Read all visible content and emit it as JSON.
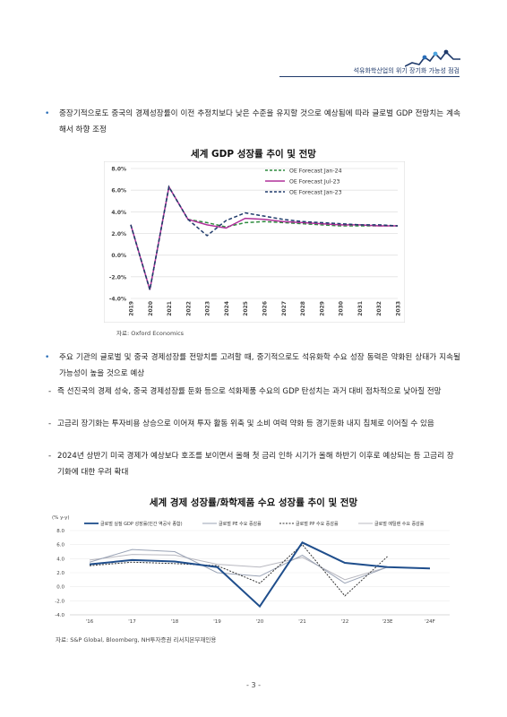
{
  "header": {
    "title": "석유화학산업의 위기 장기화 가능성 점검"
  },
  "bullets": {
    "b1": "중장기적으로도 중국의 경제성장률이 이전 추정치보다 낮은 수준을 유지할 것으로 예상됨에 따라 글로벌 GDP 전망치는 계속해서 하향 조정",
    "b2": "주요 기관의 글로벌 및 중국 경제성장률 전망치를 고려할 때, 중기적으로도 석유화학 수요 성장 동력은 약화된 상태가 지속될 가능성이 높을 것으로 예상",
    "d1": "즉 선진국의 경제 성숙, 중국 경제성장률 둔화 등으로 석화제품 수요의 GDP 탄성치는 과거 대비 점차적으로 낮아질 전망",
    "d2": "고금리 장기화는 투자비용 상승으로 이어져 투자 활동 위축 및 소비 여력 약화 등 경기둔화 내지 침체로 이어질 수 있음",
    "d3": "2024년 상반기 미국 경제가 예상보다 호조를 보이면서 올해 첫 금리 인하 시기가 올해 하반기 이후로 예상되는 등 고금리 장기화에 대한 우려 확대",
    "dash": "-"
  },
  "chart1": {
    "source": "자료: Oxford Economics",
    "yticks": [
      "8.0%",
      "6.0%",
      "4.0%",
      "2.0%",
      "0.0%",
      "-2.0%",
      "-4.0%"
    ],
    "xticks": [
      "2019",
      "2020",
      "2021",
      "2022",
      "2023",
      "2024",
      "2025",
      "2026",
      "2027",
      "2028",
      "2029",
      "2030",
      "2031",
      "2032",
      "2033"
    ]
  },
  "chart2": {
    "source": "자료: S&P Global, Bloomberg, NH투자증권 리서치본부재인용",
    "yunit": "(% y-y)",
    "yticks": [
      "8.0",
      "6.0",
      "4.0",
      "2.0",
      "0.0",
      "-2.0",
      "-4.0"
    ],
    "xticks": [
      "'16",
      "'17",
      "'18",
      "'19",
      "'20",
      "'21",
      "'22",
      "'23E",
      "'24F"
    ]
  },
  "chart_data": [
    {
      "type": "line",
      "title": "세계 GDP 성장률 추이 및 전망",
      "x": [
        2019,
        2020,
        2021,
        2022,
        2023,
        2024,
        2025,
        2026,
        2027,
        2028,
        2029,
        2030,
        2031,
        2032,
        2033
      ],
      "ylim": [
        -4,
        8
      ],
      "grid": true,
      "legend": "top-right",
      "series": [
        {
          "name": "OE Forecast Jan-24",
          "color": "#2e8b3e",
          "style": "dashed",
          "values": [
            2.8,
            -3.2,
            6.3,
            3.3,
            3.0,
            2.6,
            3.0,
            3.1,
            3.0,
            2.9,
            2.8,
            2.7,
            2.7,
            2.7,
            2.7
          ]
        },
        {
          "name": "OE Forecast Jul-23",
          "color": "#b0309a",
          "style": "solid",
          "values": [
            2.8,
            -3.2,
            6.3,
            3.3,
            2.8,
            2.5,
            3.4,
            3.3,
            3.1,
            3.0,
            2.9,
            2.8,
            2.8,
            2.7,
            2.7
          ]
        },
        {
          "name": "OE Forecast Jan-23",
          "color": "#1f3a6b",
          "style": "dashed",
          "values": [
            2.8,
            -3.2,
            6.3,
            3.3,
            1.8,
            3.2,
            3.9,
            3.6,
            3.3,
            3.1,
            3.0,
            2.9,
            2.8,
            2.8,
            2.7
          ]
        }
      ]
    },
    {
      "type": "line",
      "title": "세계 경제 성장률/화학제품 수요 성장률 추이 및 전망",
      "x": [
        "'16",
        "'17",
        "'18",
        "'19",
        "'20",
        "'21",
        "'22",
        "'23E",
        "'24F"
      ],
      "ylim": [
        -4,
        8
      ],
      "grid": true,
      "legend": "top",
      "series": [
        {
          "name": "글로벌 실질 GDP 성장률(민간 역공사 종합)",
          "color": "#1f4e8c",
          "style": "solid",
          "width": 2,
          "values": [
            3.2,
            3.8,
            3.6,
            2.8,
            -2.8,
            6.3,
            3.4,
            2.8,
            2.6
          ]
        },
        {
          "name": "글로벌 PE 수요 증감률",
          "color": "#9aa3b5",
          "style": "solid",
          "width": 1,
          "values": [
            3.5,
            5.3,
            5.0,
            2.0,
            1.5,
            4.5,
            0.5,
            2.8,
            null
          ]
        },
        {
          "name": "글로벌 PP 수요 증감률",
          "color": "#333333",
          "style": "dashed",
          "width": 1,
          "values": [
            3.0,
            3.5,
            3.3,
            3.0,
            0.5,
            6.0,
            -1.3,
            4.3,
            null
          ]
        },
        {
          "name": "글로벌 에틸렌 수요 증감률",
          "color": "#b8b8c0",
          "style": "solid",
          "width": 1,
          "values": [
            3.8,
            4.6,
            4.5,
            3.2,
            2.8,
            4.2,
            1.0,
            2.8,
            null
          ]
        }
      ]
    }
  ],
  "page": {
    "number": "- 3 -"
  }
}
